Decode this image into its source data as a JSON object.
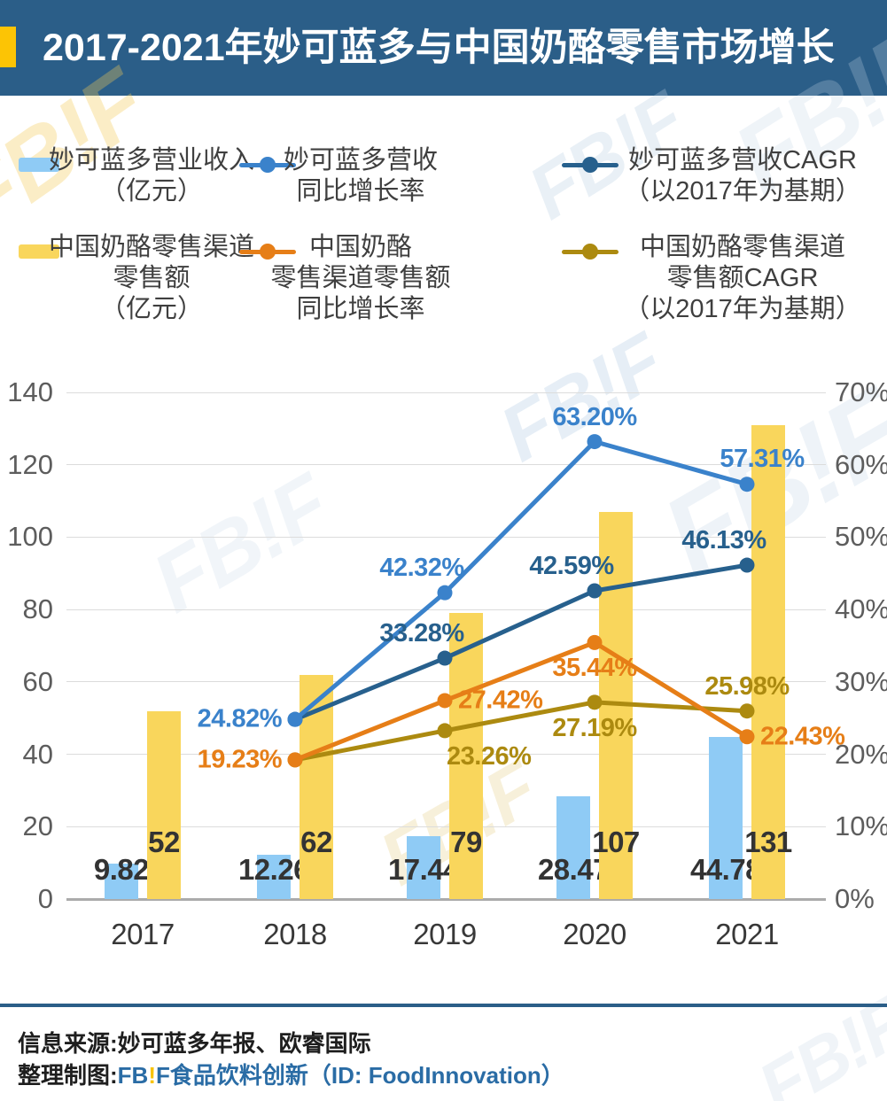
{
  "header": {
    "title": "2017-2021年妙可蓝多与中国奶酪零售市场增长",
    "bg_color": "#2B5E88",
    "accent_color": "#FCC405"
  },
  "legend": {
    "rows": [
      [
        {
          "type": "bar",
          "color": "#8FCBF5",
          "lines": [
            "妙可蓝多营业收入",
            "（亿元）"
          ]
        },
        {
          "type": "line",
          "color": "#3A82CB",
          "lines": [
            "妙可蓝多营收",
            "同比增长率"
          ]
        },
        {
          "type": "line",
          "color": "#27608D",
          "lines": [
            "妙可蓝多营收CAGR",
            "（以2017年为基期）"
          ]
        }
      ],
      [
        {
          "type": "bar",
          "color": "#F9D65C",
          "lines": [
            "中国奶酪零售渠道",
            "零售额",
            "（亿元）"
          ]
        },
        {
          "type": "line",
          "color": "#E67E17",
          "lines": [
            "中国奶酪",
            "零售渠道零售额",
            "同比增长率"
          ]
        },
        {
          "type": "line",
          "color": "#AC8A10",
          "lines": [
            "中国奶酪零售渠道",
            "零售额CAGR",
            "（以2017年为基期）"
          ]
        }
      ]
    ]
  },
  "chart_data": {
    "type": "combo-bar-line",
    "categories": [
      "2017",
      "2018",
      "2019",
      "2020",
      "2021"
    ],
    "left_axis": {
      "ticks": [
        0,
        20,
        40,
        60,
        80,
        100,
        120,
        140
      ],
      "range": [
        0,
        140
      ]
    },
    "right_axis": {
      "ticks": [
        "0%",
        "10%",
        "20%",
        "30%",
        "40%",
        "50%",
        "60%",
        "70%"
      ],
      "range": [
        0,
        70
      ]
    },
    "grid": true,
    "bar_series": [
      {
        "name": "妙可蓝多营业收入（亿元）",
        "color": "#8FCBF5",
        "axis": "left",
        "values": [
          9.82,
          12.26,
          17.44,
          28.47,
          44.78
        ],
        "labels": [
          "9.82",
          "12.26",
          "17.44",
          "28.47",
          "44.78"
        ]
      },
      {
        "name": "中国奶酪零售渠道零售额（亿元）",
        "color": "#F9D65C",
        "axis": "left",
        "values": [
          52,
          62,
          79,
          107,
          131
        ],
        "labels": [
          "52",
          "62",
          "79",
          "107",
          "131"
        ]
      }
    ],
    "line_series": [
      {
        "name": "妙可蓝多营收同比增长率",
        "color": "#3A82CB",
        "axis": "right",
        "z": 3,
        "points": [
          {
            "category": "2017",
            "value": null
          },
          {
            "category": "2018",
            "value": 24.82,
            "label": "24.82%",
            "label_anchor": "left"
          },
          {
            "category": "2019",
            "value": 42.32,
            "label": "42.32%",
            "label_anchor": "above-left"
          },
          {
            "category": "2020",
            "value": 63.2,
            "label": "63.20%",
            "label_anchor": "above"
          },
          {
            "category": "2021",
            "value": 57.31,
            "label": "57.31%",
            "label_anchor": "above-right"
          }
        ]
      },
      {
        "name": "妙可蓝多营收CAGR（以2017年为基期）",
        "color": "#27608D",
        "axis": "right",
        "z": 1,
        "points": [
          {
            "category": "2017",
            "value": null
          },
          {
            "category": "2018",
            "value": 24.82
          },
          {
            "category": "2019",
            "value": 33.28,
            "label": "33.28%",
            "label_anchor": "above-left"
          },
          {
            "category": "2020",
            "value": 42.59,
            "label": "42.59%",
            "label_anchor": "above-left"
          },
          {
            "category": "2021",
            "value": 46.13,
            "label": "46.13%",
            "label_anchor": "above-left"
          }
        ]
      },
      {
        "name": "中国奶酪零售渠道零售额同比增长率",
        "color": "#E67E17",
        "axis": "right",
        "z": 4,
        "points": [
          {
            "category": "2017",
            "value": null
          },
          {
            "category": "2018",
            "value": 19.23,
            "label": "19.23%",
            "label_anchor": "left"
          },
          {
            "category": "2019",
            "value": 27.42,
            "label": "27.42%",
            "label_anchor": "right"
          },
          {
            "category": "2020",
            "value": 35.44,
            "label": "35.44%",
            "label_anchor": "below"
          },
          {
            "category": "2021",
            "value": 22.43,
            "label": "22.43%",
            "label_anchor": "right"
          }
        ]
      },
      {
        "name": "中国奶酪零售渠道零售额CAGR（以2017年为基期）",
        "color": "#AC8A10",
        "axis": "right",
        "z": 2,
        "points": [
          {
            "category": "2017",
            "value": null
          },
          {
            "category": "2018",
            "value": 19.23
          },
          {
            "category": "2019",
            "value": 23.26,
            "label": "23.26%",
            "label_anchor": "below-right"
          },
          {
            "category": "2020",
            "value": 27.19,
            "label": "27.19%",
            "label_anchor": "below"
          },
          {
            "category": "2021",
            "value": 25.98,
            "label": "25.98%",
            "label_anchor": "above"
          }
        ]
      }
    ]
  },
  "watermark": {
    "text": "FB!F"
  },
  "footer": {
    "source_line": "信息来源:妙可蓝多年报、欧睿国际",
    "credit_prefix": "整理制图:",
    "brand_fb": "FB",
    "brand_bang": "!",
    "brand_f": "F",
    "credit_suffix": "食品饮料创新（ID: FoodInnovation）",
    "brand_blue": "#2A6CA5",
    "brand_yellow": "#F8C301",
    "divider_color": "#2B5E88"
  }
}
